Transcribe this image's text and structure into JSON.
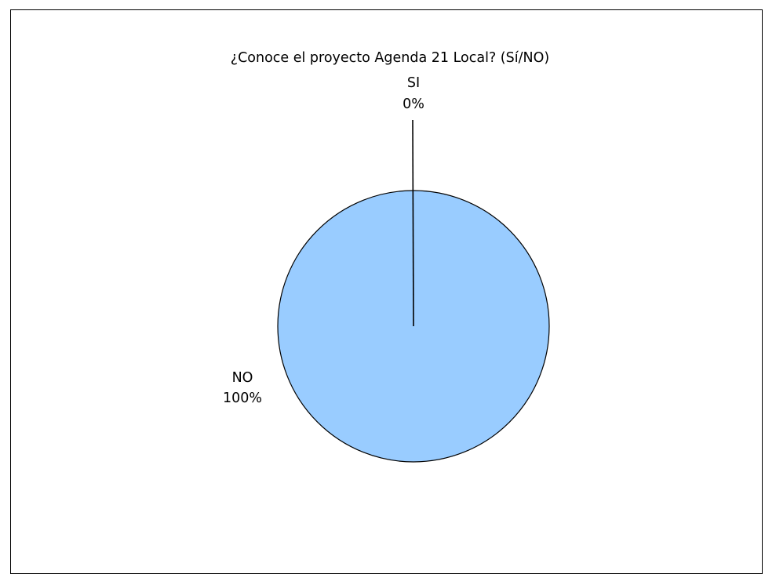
{
  "chart_data": {
    "type": "pie",
    "title": "¿Conoce el proyecto Agenda 21 Local? (Sí/NO)",
    "slices": [
      {
        "label": "SI",
        "percent_label": "0%",
        "value": 0,
        "color": "#99CCFF"
      },
      {
        "label": "NO",
        "percent_label": "100%",
        "value": 100,
        "color": "#99CCFF"
      }
    ],
    "legend": "none"
  }
}
